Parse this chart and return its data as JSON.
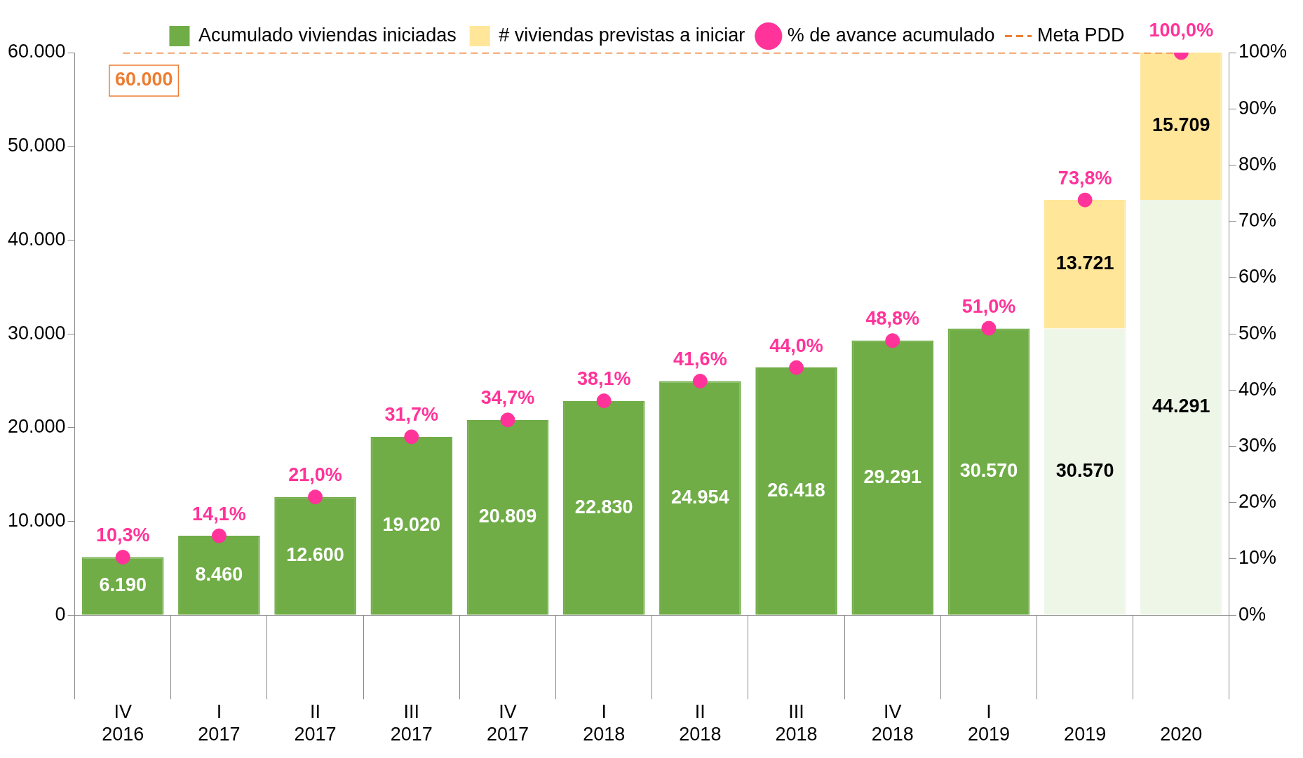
{
  "chart_data": {
    "type": "bar",
    "stacked": true,
    "categories": [
      "IV 2016",
      "I 2017",
      "II 2017",
      "III 2017",
      "IV 2017",
      "I 2018",
      "II 2018",
      "III 2018",
      "IV 2018",
      "I 2019",
      "2019",
      "2020"
    ],
    "series": [
      {
        "name": "Acumulado viviendas iniciadas",
        "color": "#70ad47",
        "colors": [
          "#70ad47",
          "#70ad47",
          "#70ad47",
          "#70ad47",
          "#70ad47",
          "#70ad47",
          "#70ad47",
          "#70ad47",
          "#70ad47",
          "#70ad47",
          "#eef6e8",
          "#eef6e8"
        ],
        "values": [
          6190,
          8460,
          12600,
          19020,
          20809,
          22830,
          24954,
          26418,
          29291,
          30570,
          30570,
          44291
        ],
        "value_labels": [
          "6.190",
          "8.460",
          "12.600",
          "19.020",
          "20.809",
          "22.830",
          "24.954",
          "26.418",
          "29.291",
          "30.570",
          "30.570",
          "44.291"
        ]
      },
      {
        "name": "# viviendas previstas a iniciar",
        "type": "bar",
        "color": "#ffe699",
        "values": [
          null,
          null,
          null,
          null,
          null,
          null,
          null,
          null,
          null,
          null,
          13721,
          15709
        ],
        "value_labels": [
          null,
          null,
          null,
          null,
          null,
          null,
          null,
          null,
          null,
          null,
          "13.721",
          "15.709"
        ]
      },
      {
        "name": "% de avance acumulado",
        "type": "scatter",
        "axis": "y2",
        "color": "#ff3399",
        "marker": "circle",
        "values": [
          10.3,
          14.1,
          21.0,
          31.7,
          34.7,
          38.1,
          41.6,
          44.0,
          48.8,
          51.0,
          73.8,
          100.0
        ],
        "value_labels": [
          "10,3%",
          "14,1%",
          "21,0%",
          "31,7%",
          "34,7%",
          "38,1%",
          "41,6%",
          "44,0%",
          "48,8%",
          "51,0%",
          "73,8%",
          "100,0%"
        ]
      },
      {
        "name": "Meta PDD",
        "type": "line",
        "color": "#ed7d31",
        "line_style": "dashed",
        "marker": "none",
        "values": [
          60000,
          60000,
          60000,
          60000,
          60000,
          60000,
          60000,
          60000,
          60000,
          60000,
          60000,
          60000
        ]
      }
    ],
    "annotations": [
      {
        "text": "60.000",
        "x": "IV 2016",
        "y": 60000
      }
    ],
    "ylim": [
      0,
      60000
    ],
    "yticks": [
      0,
      {
        "value": 10000,
        "label": "10.000"
      },
      {
        "value": 20000,
        "label": "20.000"
      },
      {
        "value": 30000,
        "label": "30.000"
      },
      {
        "value": 40000,
        "label": "40.000"
      },
      {
        "value": 50000,
        "label": "50.000"
      },
      {
        "value": 60000,
        "label": "60.000"
      }
    ],
    "y2lim": [
      0,
      100
    ],
    "y2ticks": [
      {
        "value": 0,
        "label": "0%"
      },
      {
        "value": 10,
        "label": "10%"
      },
      {
        "value": 20,
        "label": "20%"
      },
      {
        "value": 30,
        "label": "30%"
      },
      {
        "value": 40,
        "label": "40%"
      },
      {
        "value": 50,
        "label": "50%"
      },
      {
        "value": 60,
        "label": "60%"
      },
      {
        "value": 70,
        "label": "70%"
      },
      {
        "value": 80,
        "label": "80%"
      },
      {
        "value": 90,
        "label": "90%"
      },
      {
        "value": 100,
        "label": "100%"
      }
    ],
    "legend": "top",
    "grid": false
  }
}
